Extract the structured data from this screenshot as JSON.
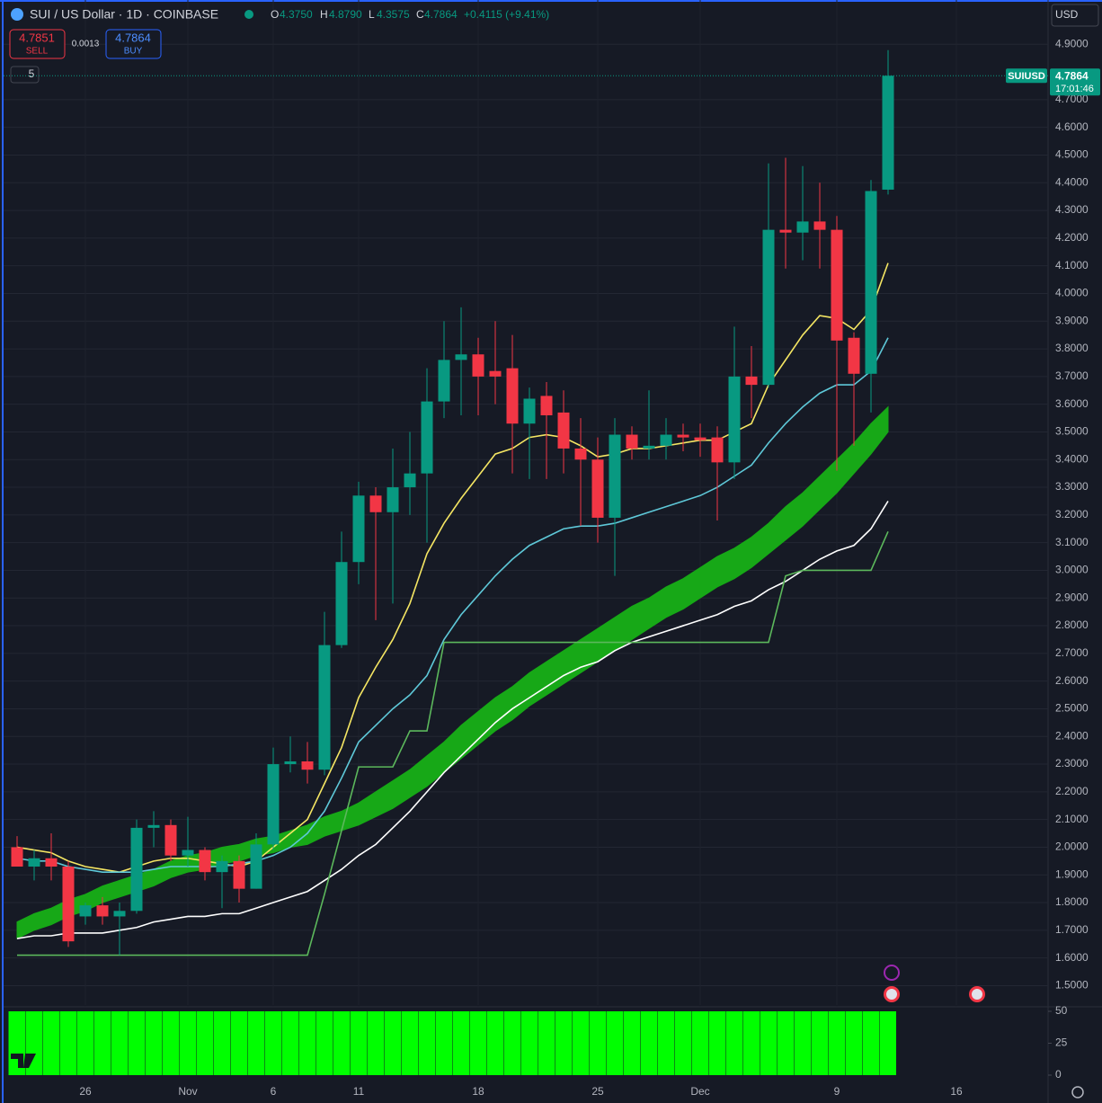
{
  "chart_data": {
    "type": "candlestick",
    "title": "SUI / US Dollar · 1D · COINBASE",
    "header": {
      "open_label": "O",
      "open": "4.3750",
      "high_label": "H",
      "high": "4.8790",
      "low_label": "L",
      "low": "4.3575",
      "close_label": "C",
      "close": "4.7864",
      "change": "+0.4115 (+9.41%)"
    },
    "trade": {
      "sell_price": "4.7851",
      "sell": "SELL",
      "spread": "0.0013",
      "buy_price": "4.7864",
      "buy": "BUY"
    },
    "indicators_count": "5",
    "currency": "USD",
    "last_price": {
      "symbol": "SUIUSD",
      "value": 4.7864,
      "time": "17:01:46"
    },
    "categories": [
      null,
      null,
      null,
      null,
      "26",
      null,
      null,
      null,
      null,
      null,
      "Nov",
      null,
      null,
      null,
      null,
      "6",
      null,
      null,
      null,
      null,
      "11",
      null,
      null,
      null,
      null,
      null,
      null,
      "18",
      null,
      null,
      null,
      null,
      null,
      null,
      "25",
      null,
      null,
      null,
      null,
      null,
      "Dec",
      null,
      null,
      null,
      null,
      null,
      null,
      null,
      "9",
      null,
      null,
      null,
      null,
      null,
      null,
      "16"
    ],
    "open": [
      2.0,
      1.93,
      1.96,
      1.93,
      1.75,
      1.79,
      1.75,
      1.77,
      2.07,
      2.08,
      1.97,
      1.99,
      1.91,
      1.95,
      1.85,
      2.01,
      2.3,
      2.31,
      2.28,
      2.73,
      3.03,
      3.27,
      3.21,
      3.3,
      3.35,
      3.61,
      3.76,
      3.78,
      3.72,
      3.73,
      3.53,
      3.63,
      3.57,
      3.44,
      3.4,
      3.19,
      3.49,
      3.44,
      3.45,
      3.49,
      3.48,
      3.48,
      3.39,
      3.7,
      3.67,
      4.23,
      4.22,
      4.26,
      4.23,
      3.84,
      3.71,
      4.375,
      null,
      null,
      null,
      null
    ],
    "high": [
      2.04,
      1.99,
      2.05,
      1.95,
      1.8,
      1.82,
      1.8,
      2.1,
      2.13,
      2.1,
      2.11,
      2.0,
      1.97,
      1.97,
      2.05,
      2.36,
      2.4,
      2.38,
      2.85,
      3.14,
      3.32,
      3.3,
      3.44,
      3.5,
      3.73,
      3.9,
      3.95,
      3.84,
      3.9,
      3.85,
      3.66,
      3.68,
      3.65,
      3.55,
      3.48,
      3.55,
      3.52,
      3.65,
      3.55,
      3.53,
      3.53,
      3.52,
      3.88,
      3.81,
      4.47,
      4.49,
      4.46,
      4.4,
      4.28,
      3.86,
      4.41,
      4.879,
      null,
      null,
      null,
      null
    ],
    "low": [
      1.93,
      1.88,
      1.88,
      1.64,
      1.72,
      1.72,
      1.61,
      1.76,
      2.0,
      1.95,
      1.93,
      1.88,
      1.78,
      1.8,
      1.85,
      1.99,
      2.27,
      2.23,
      2.26,
      2.72,
      2.95,
      2.82,
      2.88,
      3.2,
      3.1,
      3.55,
      3.56,
      3.56,
      3.6,
      3.35,
      3.33,
      3.33,
      3.35,
      3.16,
      3.1,
      2.98,
      3.4,
      3.4,
      3.4,
      3.43,
      3.41,
      3.18,
      3.33,
      3.55,
      3.66,
      4.09,
      4.12,
      4.09,
      3.36,
      3.45,
      3.57,
      4.3575,
      null,
      null,
      null,
      null
    ],
    "close": [
      1.93,
      1.96,
      1.93,
      1.66,
      1.79,
      1.75,
      1.77,
      2.07,
      2.08,
      1.97,
      1.99,
      1.91,
      1.95,
      1.85,
      2.01,
      2.3,
      2.31,
      2.28,
      2.73,
      3.03,
      3.27,
      3.21,
      3.3,
      3.35,
      3.61,
      3.76,
      3.78,
      3.7,
      3.7,
      3.53,
      3.62,
      3.56,
      3.44,
      3.4,
      3.19,
      3.49,
      3.44,
      3.45,
      3.49,
      3.48,
      3.47,
      3.39,
      3.7,
      3.67,
      4.23,
      4.22,
      4.26,
      4.23,
      3.83,
      3.71,
      4.37,
      4.7864,
      null,
      null,
      null,
      null
    ],
    "up_color": "#089981",
    "down_color": "#f23645",
    "series": [
      {
        "color": "#f5e663",
        "values": [
          2.0,
          1.99,
          1.98,
          1.95,
          1.93,
          1.92,
          1.91,
          1.93,
          1.95,
          1.96,
          1.96,
          1.95,
          1.94,
          1.93,
          1.95,
          2.0,
          2.05,
          2.1,
          2.23,
          2.36,
          2.54,
          2.65,
          2.75,
          2.88,
          3.06,
          3.17,
          3.26,
          3.34,
          3.42,
          3.44,
          3.48,
          3.49,
          3.48,
          3.45,
          3.41,
          3.42,
          3.44,
          3.44,
          3.45,
          3.46,
          3.47,
          3.47,
          3.5,
          3.53,
          3.67,
          3.76,
          3.85,
          3.92,
          3.91,
          3.87,
          3.94,
          4.11,
          null,
          null,
          null,
          null
        ]
      },
      {
        "color": "#5ec8d8",
        "values": [
          1.96,
          1.95,
          1.95,
          1.93,
          1.92,
          1.91,
          1.91,
          1.91,
          1.92,
          1.93,
          1.93,
          1.93,
          1.93,
          1.94,
          1.95,
          1.97,
          2.0,
          2.05,
          2.13,
          2.25,
          2.38,
          2.44,
          2.5,
          2.55,
          2.62,
          2.75,
          2.84,
          2.91,
          2.98,
          3.04,
          3.09,
          3.12,
          3.15,
          3.16,
          3.16,
          3.17,
          3.19,
          3.21,
          3.23,
          3.25,
          3.27,
          3.3,
          3.34,
          3.38,
          3.46,
          3.53,
          3.59,
          3.64,
          3.67,
          3.67,
          3.72,
          3.84,
          null,
          null,
          null,
          null
        ]
      },
      {
        "color": "#ffffff",
        "values": [
          1.67,
          1.68,
          1.68,
          1.69,
          1.69,
          1.69,
          1.7,
          1.71,
          1.73,
          1.74,
          1.75,
          1.75,
          1.76,
          1.76,
          1.78,
          1.8,
          1.82,
          1.84,
          1.88,
          1.92,
          1.97,
          2.01,
          2.07,
          2.13,
          2.2,
          2.27,
          2.33,
          2.39,
          2.45,
          2.5,
          2.54,
          2.58,
          2.62,
          2.65,
          2.67,
          2.71,
          2.74,
          2.76,
          2.78,
          2.8,
          2.82,
          2.84,
          2.87,
          2.89,
          2.93,
          2.96,
          3.0,
          3.04,
          3.07,
          3.09,
          3.15,
          3.25,
          null,
          null,
          null,
          null
        ]
      },
      {
        "color": "#5cb85c",
        "values": [
          1.61,
          1.61,
          1.61,
          1.61,
          1.61,
          1.61,
          1.61,
          1.61,
          1.61,
          1.61,
          1.61,
          1.61,
          1.61,
          1.61,
          1.61,
          1.61,
          1.61,
          1.61,
          1.83,
          2.06,
          2.29,
          2.29,
          2.29,
          2.42,
          2.42,
          2.74,
          2.74,
          2.74,
          2.74,
          2.74,
          2.74,
          2.74,
          2.74,
          2.74,
          2.74,
          2.74,
          2.74,
          2.74,
          2.74,
          2.74,
          2.74,
          2.74,
          2.74,
          2.74,
          2.74,
          2.98,
          3.0,
          3.0,
          3.0,
          3.0,
          3.0,
          3.14,
          null,
          null,
          null,
          null
        ]
      }
    ],
    "band": {
      "color": "#17a817",
      "upper": [
        1.73,
        1.76,
        1.78,
        1.81,
        1.83,
        1.86,
        1.88,
        1.9,
        1.92,
        1.95,
        1.97,
        1.98,
        2.0,
        2.01,
        2.03,
        2.04,
        2.06,
        2.08,
        2.11,
        2.13,
        2.16,
        2.2,
        2.24,
        2.28,
        2.33,
        2.38,
        2.44,
        2.49,
        2.54,
        2.58,
        2.63,
        2.67,
        2.71,
        2.75,
        2.79,
        2.83,
        2.87,
        2.9,
        2.94,
        2.97,
        3.01,
        3.05,
        3.08,
        3.12,
        3.17,
        3.23,
        3.28,
        3.34,
        3.4,
        3.46,
        3.53,
        3.59,
        null,
        null,
        null,
        null
      ],
      "lower": [
        1.67,
        1.7,
        1.72,
        1.75,
        1.77,
        1.8,
        1.82,
        1.84,
        1.86,
        1.89,
        1.91,
        1.92,
        1.94,
        1.95,
        1.97,
        1.98,
        2.0,
        2.01,
        2.04,
        2.06,
        2.08,
        2.11,
        2.14,
        2.18,
        2.22,
        2.27,
        2.32,
        2.37,
        2.42,
        2.46,
        2.51,
        2.55,
        2.59,
        2.63,
        2.67,
        2.71,
        2.75,
        2.79,
        2.83,
        2.86,
        2.9,
        2.94,
        2.97,
        3.01,
        3.06,
        3.11,
        3.16,
        3.22,
        3.28,
        3.35,
        3.42,
        3.5,
        null,
        null,
        null,
        null
      ]
    },
    "ylim": [
      1.43,
      5.06
    ],
    "yticks": [
      {
        "value": 1.5,
        "label": "1.5000"
      },
      {
        "value": 1.6,
        "label": "1.6000"
      },
      {
        "value": 1.7,
        "label": "1.7000"
      },
      {
        "value": 1.8,
        "label": "1.8000"
      },
      {
        "value": 1.9,
        "label": "1.9000"
      },
      {
        "value": 2.0,
        "label": "2.0000"
      },
      {
        "value": 2.1,
        "label": "2.1000"
      },
      {
        "value": 2.2,
        "label": "2.2000"
      },
      {
        "value": 2.3,
        "label": "2.3000"
      },
      {
        "value": 2.4,
        "label": "2.4000"
      },
      {
        "value": 2.5,
        "label": "2.5000"
      },
      {
        "value": 2.6,
        "label": "2.6000"
      },
      {
        "value": 2.7,
        "label": "2.7000"
      },
      {
        "value": 2.8,
        "label": "2.8000"
      },
      {
        "value": 2.9,
        "label": "2.9000"
      },
      {
        "value": 3.0,
        "label": "3.0000"
      },
      {
        "value": 3.1,
        "label": "3.1000"
      },
      {
        "value": 3.2,
        "label": "3.2000"
      },
      {
        "value": 3.3,
        "label": "3.3000"
      },
      {
        "value": 3.4,
        "label": "3.4000"
      },
      {
        "value": 3.5,
        "label": "3.5000"
      },
      {
        "value": 3.6,
        "label": "3.6000"
      },
      {
        "value": 3.7,
        "label": "3.7000"
      },
      {
        "value": 3.8,
        "label": "3.8000"
      },
      {
        "value": 3.9,
        "label": "3.9000"
      },
      {
        "value": 4.0,
        "label": "4.0000"
      },
      {
        "value": 4.1,
        "label": "4.1000"
      },
      {
        "value": 4.2,
        "label": "4.2000"
      },
      {
        "value": 4.3,
        "label": "4.3000"
      },
      {
        "value": 4.4,
        "label": "4.4000"
      },
      {
        "value": 4.5,
        "label": "4.5000"
      },
      {
        "value": 4.6,
        "label": "4.6000"
      },
      {
        "value": 4.7,
        "label": "4.7000"
      },
      {
        "value": 4.9,
        "label": "4.9000"
      }
    ],
    "grid": true,
    "lower_panel": {
      "type": "bar",
      "color": "#00ff00",
      "ylim": [
        0,
        50
      ],
      "yticks": [
        0,
        25,
        50
      ],
      "values": [
        50,
        50,
        50,
        50,
        50,
        50,
        50,
        50,
        50,
        50,
        50,
        50,
        50,
        50,
        50,
        50,
        50,
        50,
        50,
        50,
        50,
        50,
        50,
        50,
        50,
        50,
        50,
        50,
        50,
        50,
        50,
        50,
        50,
        50,
        50,
        50,
        50,
        50,
        50,
        50,
        50,
        50,
        50,
        50,
        50,
        50,
        50,
        50,
        50,
        50,
        50,
        50,
        null,
        null,
        null,
        null
      ]
    }
  }
}
